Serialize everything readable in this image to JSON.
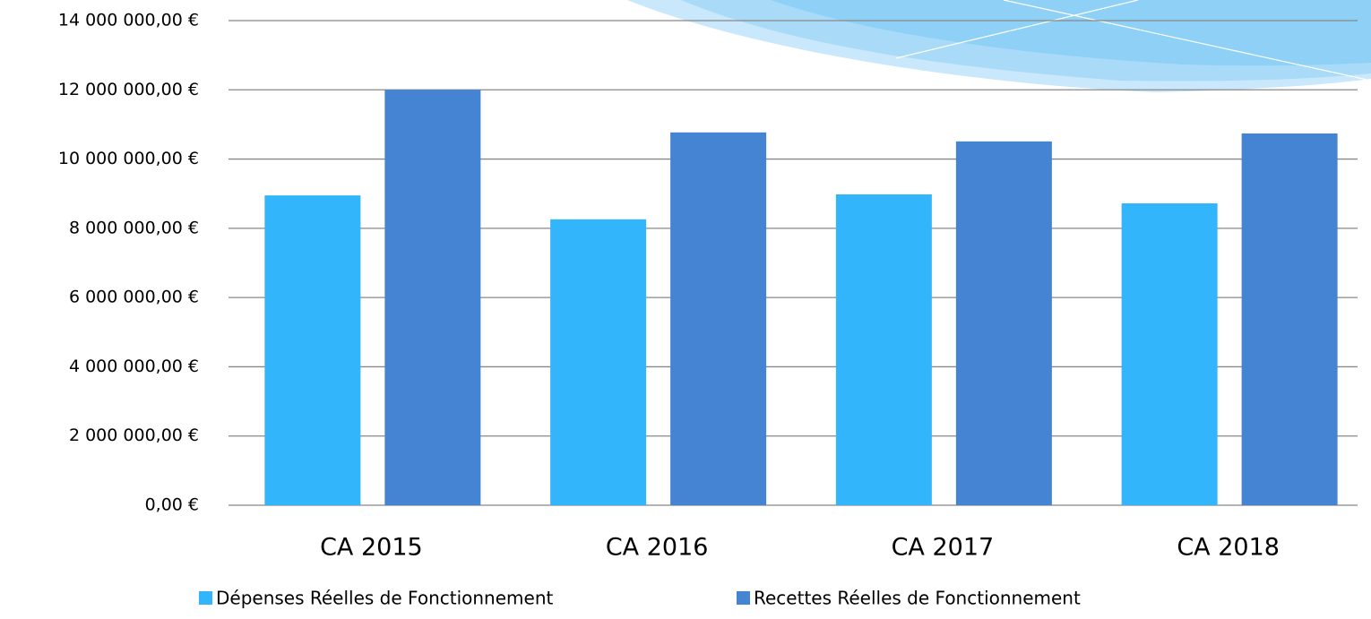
{
  "chart_data": {
    "type": "bar",
    "categories": [
      "CA 2015",
      "CA 2016",
      "CA 2017",
      "CA 2018"
    ],
    "series": [
      {
        "name": "Dépenses Réelles de Fonctionnement",
        "color": "#33b5fb",
        "values": [
          8950000,
          8260000,
          8980000,
          8720000
        ]
      },
      {
        "name": "Recettes Réelles de Fonctionnement",
        "color": "#4584d3",
        "values": [
          12000000,
          10770000,
          10510000,
          10740000
        ]
      }
    ],
    "ylim": [
      0,
      14000000
    ],
    "yticks": [
      {
        "value": 0,
        "label": "0,00 €"
      },
      {
        "value": 2000000,
        "label": "2 000 000,00 €"
      },
      {
        "value": 4000000,
        "label": "4 000 000,00 €"
      },
      {
        "value": 6000000,
        "label": "6 000 000,00 €"
      },
      {
        "value": 8000000,
        "label": "8 000 000,00 €"
      },
      {
        "value": 10000000,
        "label": "10 000 000,00 €"
      },
      {
        "value": 12000000,
        "label": "12 000 000,00 €"
      },
      {
        "value": 14000000,
        "label": "14 000 000,00 €"
      }
    ],
    "grid": true,
    "legend": "bottom"
  }
}
